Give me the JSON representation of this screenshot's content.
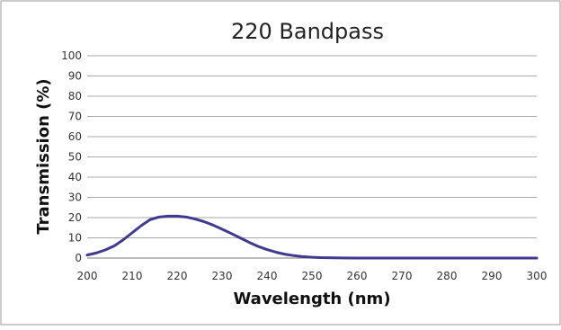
{
  "chart_data": {
    "type": "line",
    "title": "220 Bandpass",
    "xlabel": "Wavelength (nm)",
    "ylabel": "Transmission (%)",
    "xlim": [
      200,
      300
    ],
    "ylim": [
      0,
      100
    ],
    "xticks": [
      "200",
      "210",
      "220",
      "230",
      "240",
      "250",
      "260",
      "270",
      "280",
      "290",
      "300"
    ],
    "yticks": [
      "0",
      "10",
      "20",
      "30",
      "40",
      "50",
      "60",
      "70",
      "80",
      "90",
      "100"
    ],
    "grid": "horizontal",
    "legend": "none",
    "line_color": "#3f3a8f",
    "series": [
      {
        "x": [
          200,
          202,
          204,
          206,
          208,
          210,
          212,
          214,
          216,
          218,
          220,
          222,
          224,
          226,
          228,
          230,
          232,
          234,
          236,
          238,
          240,
          242,
          244,
          246,
          248,
          250,
          252,
          255,
          260,
          270,
          280,
          290,
          300
        ],
        "values": [
          1.5,
          2.5,
          4,
          6,
          9,
          12.5,
          16,
          19,
          20.3,
          20.7,
          20.7,
          20.3,
          19.3,
          18,
          16.3,
          14.3,
          12.2,
          10,
          7.8,
          5.8,
          4.2,
          2.9,
          1.9,
          1.2,
          0.7,
          0.4,
          0.2,
          0.1,
          0,
          0,
          0,
          0,
          0
        ]
      }
    ]
  }
}
